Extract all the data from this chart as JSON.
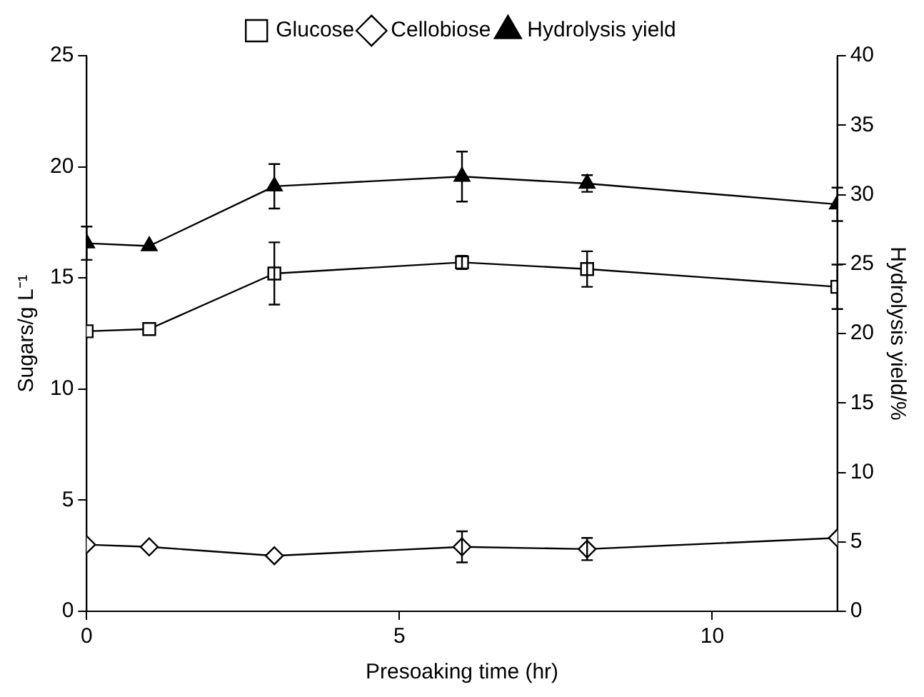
{
  "chart_data": {
    "type": "line",
    "xlabel": "Presoaking time (hr)",
    "ylabel": "Sugars/g L⁻¹",
    "y2label": "Hydrolysis yield/%",
    "x": [
      0,
      1,
      3,
      6,
      8,
      12
    ],
    "xlim": [
      0,
      12
    ],
    "xticks": [
      0,
      5,
      10
    ],
    "ylim": [
      0,
      25
    ],
    "yticks": [
      0,
      5,
      10,
      15,
      20,
      25
    ],
    "y2lim": [
      0,
      40
    ],
    "y2ticks": [
      0,
      5,
      10,
      15,
      20,
      25,
      30,
      35,
      40
    ],
    "grid": false,
    "legend": "top",
    "line_style": "solid",
    "series": [
      {
        "name": "Glucose",
        "color": "#000000",
        "marker": "square",
        "values": [
          12.6,
          12.7,
          15.2,
          15.7,
          15.4,
          14.6
        ],
        "errors": [
          null,
          null,
          1.4,
          0.3,
          0.8,
          1.0
        ]
      },
      {
        "name": "Cellobiose",
        "color": "#000000",
        "marker": "diamond",
        "values": [
          3.0,
          2.9,
          2.5,
          2.9,
          2.8,
          3.3
        ],
        "errors": [
          null,
          null,
          null,
          0.7,
          0.5,
          null
        ]
      },
      {
        "name": "Hydrolysis yield",
        "color": "#000000",
        "marker": "triangle",
        "axis": "y2",
        "values": [
          26.5,
          26.3,
          30.6,
          31.3,
          30.8,
          29.3
        ],
        "errors": [
          1.2,
          null,
          1.6,
          1.8,
          0.6,
          1.2
        ]
      }
    ]
  }
}
